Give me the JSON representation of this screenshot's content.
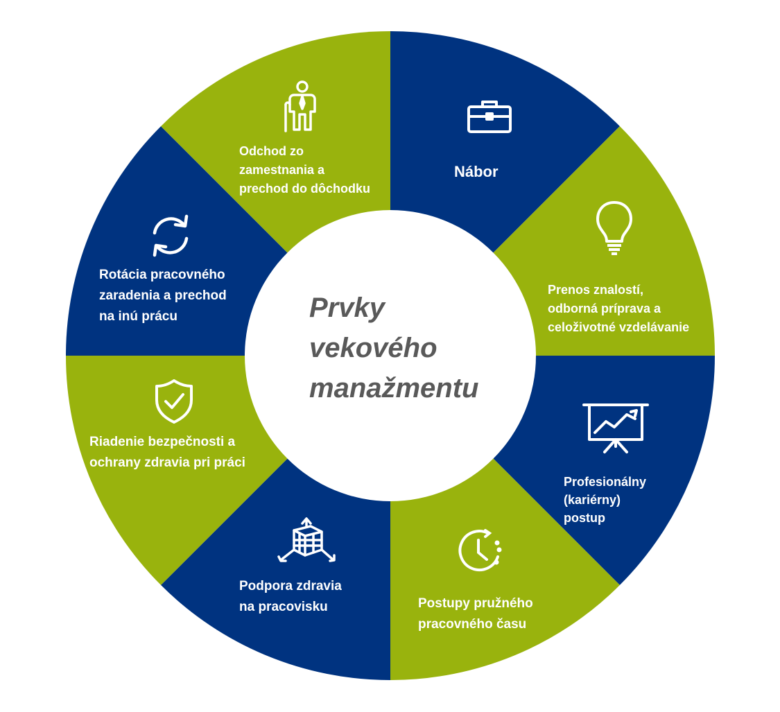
{
  "center": {
    "title": "Prvky\nvekového\nmanažmentu"
  },
  "colors": {
    "blue": "#003380",
    "green": "#99b30d",
    "white": "#ffffff",
    "center_text": "#595959"
  },
  "segments": [
    {
      "id": "nabor",
      "label": "Nábor",
      "color": "#003380",
      "icon": "briefcase-icon"
    },
    {
      "id": "prenos",
      "label": "Prenos znalostí,\nodborná príprava a\nceloživotné vzdelávanie",
      "color": "#99b30d",
      "icon": "lightbulb-icon"
    },
    {
      "id": "profesionalny",
      "label": "Profesionálny\n(kariérny)\npostup",
      "color": "#003380",
      "icon": "presentation-chart-icon"
    },
    {
      "id": "postupy",
      "label": "Postupy pružného\npracovného času",
      "color": "#99b30d",
      "icon": "clock-icon"
    },
    {
      "id": "podpora",
      "label": "Podpora zdravia\nna pracovisku",
      "color": "#003380",
      "icon": "cube-arrows-icon"
    },
    {
      "id": "riadenie",
      "label": "Riadenie bezpečnosti a\nochrany zdravia pri práci",
      "color": "#99b30d",
      "icon": "shield-check-icon"
    },
    {
      "id": "rotacia",
      "label": "Rotácia pracovného\nzaradenia a prechod\nna inú prácu",
      "color": "#003380",
      "icon": "refresh-icon"
    },
    {
      "id": "odchod",
      "label": "Odchod zo\nzamestnania a\nprechod do dôchodku",
      "color": "#99b30d",
      "icon": "elderly-person-icon"
    }
  ]
}
